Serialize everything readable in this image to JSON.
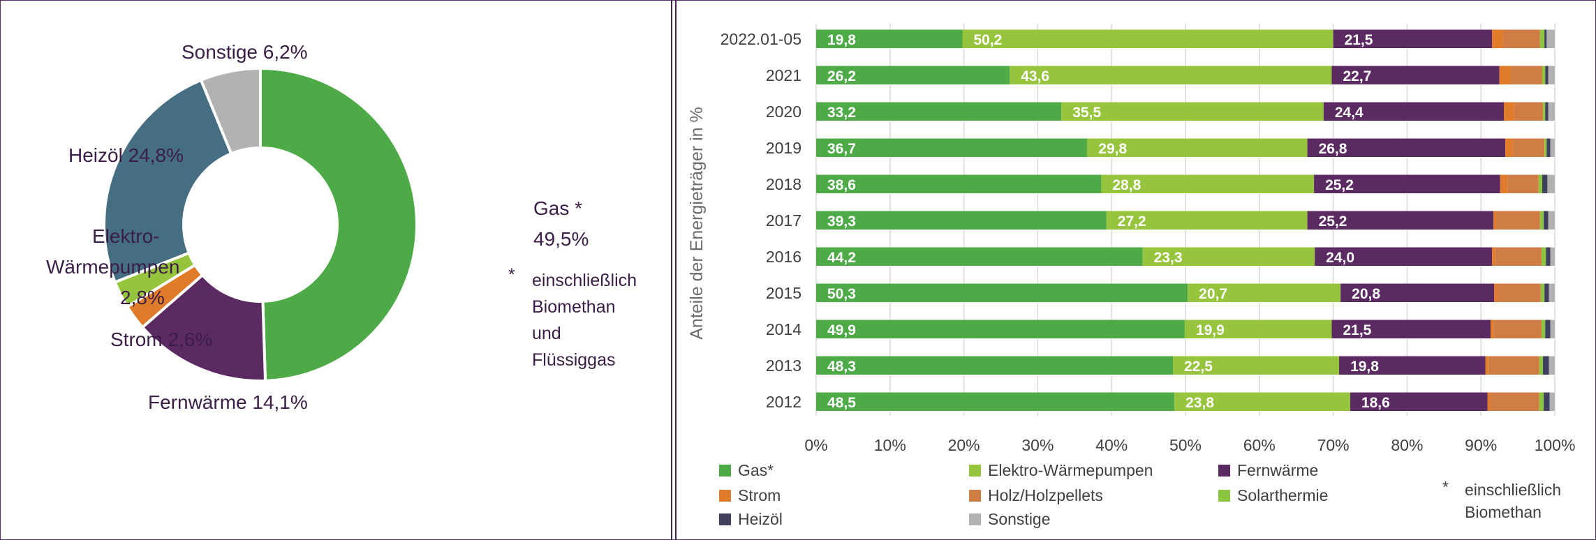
{
  "colors": {
    "gas": "#4daa47",
    "waermepumpen": "#96c43c",
    "fernwaerme": "#5c2a62",
    "strom": "#e07b2a",
    "holz": "#d07c45",
    "solar": "#8cc63f",
    "heizoel": "#3f3f5e",
    "sonstige": "#b2b2b2",
    "heizoel_pie": "#466e82"
  },
  "chart_data": [
    {
      "type": "pie",
      "donut": true,
      "slices": [
        {
          "key": "gas",
          "value": 49.5,
          "label_lines": [
            "Gas *",
            "49,5%"
          ]
        },
        {
          "key": "fernwaerme",
          "value": 14.1,
          "label_lines": [
            "Fernwärme 14,1%"
          ]
        },
        {
          "key": "strom",
          "value": 2.6,
          "label_lines": [
            "Strom 2,6%"
          ]
        },
        {
          "key": "waermepumpen",
          "value": 2.8,
          "label_lines": [
            "Elektro-",
            "Wärmepumpen",
            "2,8%"
          ]
        },
        {
          "key": "heizoel",
          "value": 24.8,
          "label_lines": [
            "Heizöl 24,8%"
          ]
        },
        {
          "key": "sonstige",
          "value": 6.2,
          "label_lines": [
            "Sonstige 6,2%"
          ]
        }
      ],
      "footnote": {
        "marker": "*",
        "lines": [
          "einschließlich",
          "Biomethan",
          "und",
          "Flüssiggas"
        ]
      }
    },
    {
      "type": "bar",
      "orientation": "horizontal",
      "stacked": true,
      "ylabel": "Anteile der Energieträger in %",
      "xlim": [
        0,
        100
      ],
      "x_ticks": [
        "0%",
        "10%",
        "20%",
        "30%",
        "40%",
        "50%",
        "60%",
        "70%",
        "80%",
        "90%",
        "100%"
      ],
      "categories": [
        "2022.01-05",
        "2021",
        "2020",
        "2019",
        "2018",
        "2017",
        "2016",
        "2015",
        "2014",
        "2013",
        "2012"
      ],
      "series": [
        {
          "key": "gas",
          "name": "Gas*",
          "values": [
            19.8,
            26.2,
            33.2,
            36.7,
            38.6,
            39.3,
            44.2,
            50.3,
            49.9,
            48.3,
            48.5
          ],
          "labels": [
            "19,8",
            "26,2",
            "33,2",
            "36,7",
            "38,6",
            "39,3",
            "44,2",
            "50,3",
            "49,9",
            "48,3",
            "48,5"
          ]
        },
        {
          "key": "waermepumpen",
          "name": "Elektro-Wärmepumpen",
          "values": [
            50.2,
            43.6,
            35.5,
            29.8,
            28.8,
            27.2,
            23.3,
            20.7,
            19.9,
            22.5,
            23.8
          ],
          "labels": [
            "50,2",
            "43,6",
            "35,5",
            "29,8",
            "28,8",
            "27,2",
            "23,3",
            "20,7",
            "19,9",
            "22,5",
            "23,8"
          ]
        },
        {
          "key": "fernwaerme",
          "name": "Fernwärme",
          "values": [
            21.5,
            22.7,
            24.4,
            26.8,
            25.2,
            25.2,
            24.0,
            20.8,
            21.5,
            19.8,
            18.6
          ],
          "labels": [
            "21,5",
            "22,7",
            "24,4",
            "26,8",
            "25,2",
            "25,2",
            "24,0",
            "20,8",
            "21,5",
            "19,8",
            "18,6"
          ]
        },
        {
          "key": "strom",
          "name": "Strom",
          "values": [
            1.5,
            1.5,
            1.4,
            1.0,
            1.0,
            0.4,
            0.4,
            0.4,
            0.4,
            0.4,
            0.4
          ]
        },
        {
          "key": "holz",
          "name": "Holz/Holzpellets",
          "values": [
            5.0,
            4.3,
            3.9,
            4.3,
            4.2,
            5.9,
            6.3,
            5.9,
            6.5,
            6.9,
            6.6
          ]
        },
        {
          "key": "solar",
          "name": "Solarthermie",
          "values": [
            0.6,
            0.4,
            0.3,
            0.3,
            0.5,
            0.5,
            0.6,
            0.5,
            0.5,
            0.5,
            0.6
          ]
        },
        {
          "key": "heizoel",
          "name": "Heizöl",
          "values": [
            0.3,
            0.4,
            0.4,
            0.5,
            0.7,
            0.6,
            0.6,
            0.6,
            0.7,
            0.8,
            0.8
          ]
        },
        {
          "key": "sonstige",
          "name": "Sonstige",
          "values": [
            1.1,
            0.9,
            0.9,
            0.6,
            1.0,
            0.9,
            0.6,
            0.8,
            0.6,
            0.8,
            0.7
          ]
        }
      ],
      "legend_position": "bottom",
      "legend_footnote": {
        "marker": "*",
        "lines": [
          "einschließlich",
          "Biomethan"
        ]
      }
    }
  ]
}
